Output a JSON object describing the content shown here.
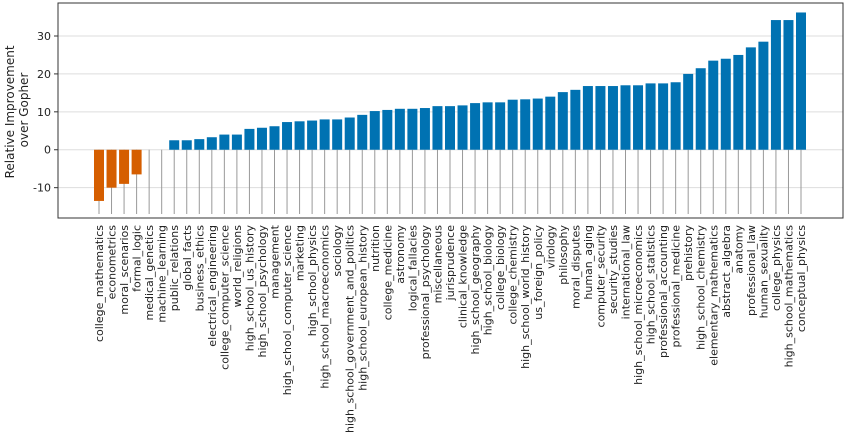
{
  "chart_data": {
    "type": "bar",
    "ylabel": [
      "Relative Improvement",
      "over Gopher"
    ],
    "categories": [
      "college_mathematics",
      "econometrics",
      "moral_scenarios",
      "formal_logic",
      "medical_genetics",
      "machine_learning",
      "public_relations",
      "global_facts",
      "business_ethics",
      "electrical_engineering",
      "college_computer_science",
      "world_religions",
      "high_school_us_history",
      "high_school_psychology",
      "management",
      "high_school_computer_science",
      "marketing",
      "high_school_physics",
      "high_school_macroeconomics",
      "sociology",
      "high_school_government_and_politics",
      "high_school_european_history",
      "nutrition",
      "college_medicine",
      "astronomy",
      "logical_fallacies",
      "professional_psychology",
      "miscellaneous",
      "jurisprudence",
      "clinical_knowledge",
      "high_school_geography",
      "high_school_biology",
      "college_biology",
      "college_chemistry",
      "high_school_world_history",
      "us_foreign_policy",
      "virology",
      "philosophy",
      "moral_disputes",
      "human_aging",
      "computer_security",
      "security_studies",
      "international_law",
      "high_school_microeconomics",
      "high_school_statistics",
      "professional_accounting",
      "professional_medicine",
      "prehistory",
      "high_school_chemistry",
      "elementary_mathematics",
      "abstract_algebra",
      "anatomy",
      "professional_law",
      "human_sexuality",
      "college_physics",
      "high_school_mathematics",
      "conceptual_physics"
    ],
    "values": [
      -13.5,
      -10,
      -9,
      -6.5,
      0,
      0,
      2.5,
      2.5,
      2.8,
      3.3,
      4,
      4,
      5.5,
      5.8,
      6.2,
      7.3,
      7.5,
      7.7,
      8,
      8,
      8.5,
      9.2,
      10.2,
      10.5,
      10.8,
      10.8,
      11,
      11.5,
      11.5,
      11.7,
      12.3,
      12.5,
      12.5,
      13.2,
      13.3,
      13.5,
      14,
      15.2,
      15.8,
      16.8,
      16.8,
      16.8,
      17,
      17,
      17.5,
      17.5,
      17.8,
      20,
      21.5,
      23.5,
      24,
      25,
      27,
      28.5,
      34.2,
      34.2,
      36.2
    ],
    "color": "#0072b2",
    "negative_color": "#d55e00",
    "ylim": [
      -18,
      38.7
    ],
    "yticks": [
      -10,
      0,
      10,
      20,
      30
    ],
    "grid": true
  }
}
